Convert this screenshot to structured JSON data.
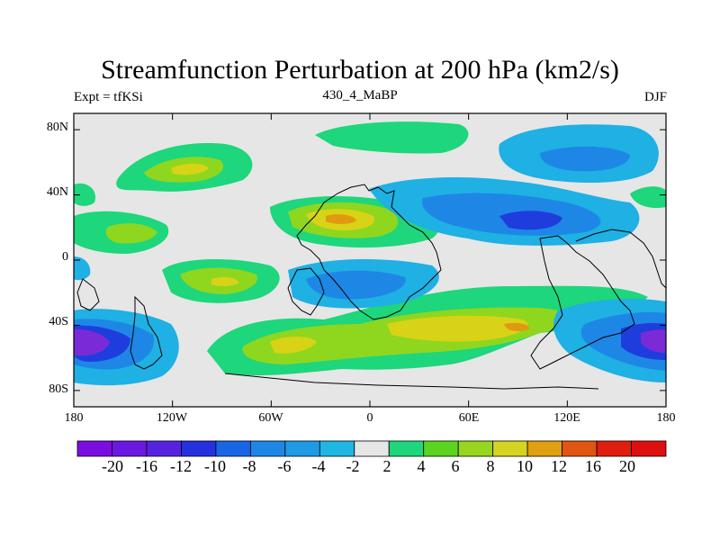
{
  "plot": {
    "title": "Streamfunction Perturbation at 200 hPa (km2/s)",
    "left_label": "Expt = tfKSi",
    "center_label": "430_4_MaBP",
    "right_label": "DJF",
    "fill_colors": {
      "background": "#e6e6e6",
      "neg_strong": "#7b2ad7",
      "neg_mid": "#1f3ddd",
      "neg_blue": "#1e87e6",
      "neg_light": "#1fb0e4",
      "pos_green": "#1ed67b",
      "pos_lime": "#8fd61f",
      "pos_yellow": "#d8d316",
      "pos_orange": "#e09a0f"
    },
    "x_axis": {
      "ticks": [
        "180",
        "120W",
        "60W",
        "0",
        "60E",
        "120E",
        "180"
      ],
      "tick_values": [
        -180,
        -120,
        -60,
        0,
        60,
        120,
        180
      ]
    },
    "y_axis": {
      "ticks": [
        "80N",
        "40N",
        "0",
        "40S",
        "80S"
      ],
      "tick_values": [
        80,
        40,
        0,
        -40,
        -80
      ]
    }
  },
  "colorbar": {
    "labels": [
      "-20",
      "-16",
      "-12",
      "-10",
      "-8",
      "-6",
      "-4",
      "-2",
      "2",
      "4",
      "6",
      "8",
      "10",
      "12",
      "16",
      "20"
    ],
    "colors": [
      "#7a0ee0",
      "#6a18e2",
      "#5523df",
      "#2531df",
      "#1766e6",
      "#1e87e6",
      "#1f9ae4",
      "#1fb6e4",
      "#e6e6e6",
      "#1ed67b",
      "#5bd41f",
      "#98d51f",
      "#d5d31f",
      "#e0a011",
      "#e0550f",
      "#e01e0f",
      "#e00f0f"
    ]
  }
}
